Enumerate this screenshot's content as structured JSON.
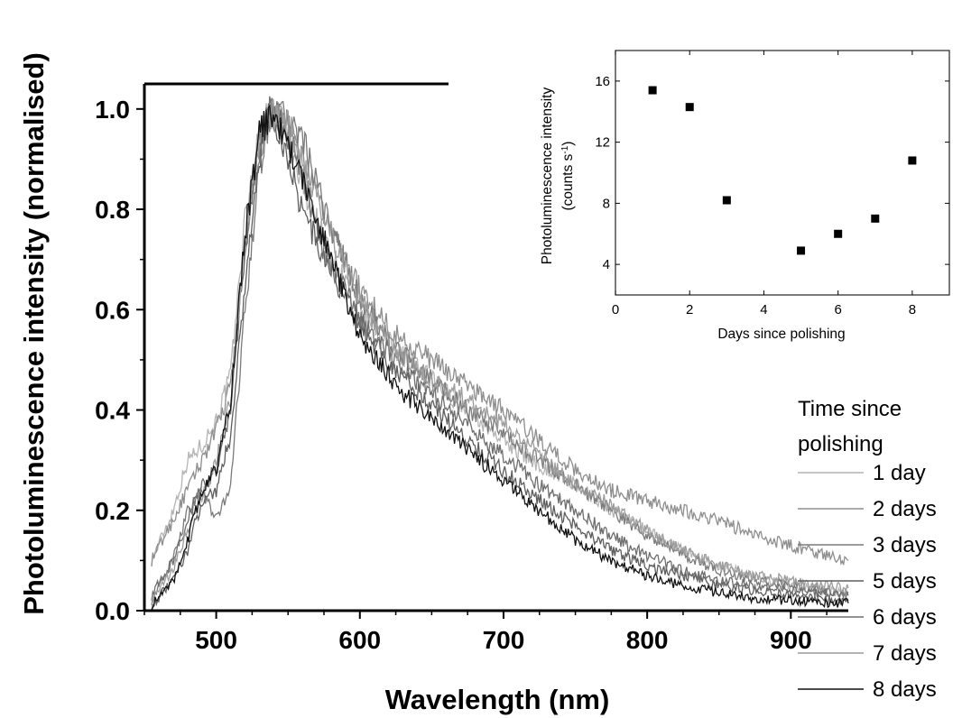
{
  "chart_data": [
    {
      "id": "main",
      "type": "line",
      "xlabel": "Wavelength (nm)",
      "ylabel": "Photoluminescence intensity (normalised)",
      "xlim": [
        450,
        940
      ],
      "ylim": [
        0,
        1.05
      ],
      "xticks": [
        500,
        600,
        700,
        800,
        900
      ],
      "yticks": [
        0.0,
        0.2,
        0.4,
        0.6,
        0.8,
        1.0
      ],
      "ytick_labels": [
        "0.0",
        "0.2",
        "0.4",
        "0.6",
        "0.8",
        "1.0"
      ],
      "legend_title": [
        "Time since",
        "polishing"
      ],
      "legend_position": "right",
      "grid": false,
      "series": [
        {
          "name": "1 day",
          "color": "#b4b4b4",
          "x": [
            455,
            470,
            480,
            490,
            500,
            510,
            520,
            530,
            538,
            550,
            560,
            575,
            600,
            625,
            650,
            675,
            700,
            725,
            750,
            775,
            800,
            825,
            850,
            875,
            900,
            925,
            940
          ],
          "y": [
            0.1,
            0.2,
            0.3,
            0.33,
            0.38,
            0.47,
            0.78,
            0.95,
            1.0,
            0.93,
            0.85,
            0.74,
            0.6,
            0.52,
            0.46,
            0.4,
            0.34,
            0.29,
            0.25,
            0.2,
            0.16,
            0.12,
            0.09,
            0.07,
            0.05,
            0.04,
            0.035
          ]
        },
        {
          "name": "2 days",
          "color": "#8e8e8e",
          "x": [
            455,
            470,
            480,
            490,
            500,
            505,
            510,
            520,
            530,
            538,
            550,
            560,
            575,
            600,
            625,
            650,
            675,
            700,
            725,
            750,
            775,
            800,
            825,
            850,
            875,
            900,
            925,
            940
          ],
          "y": [
            0.1,
            0.18,
            0.24,
            0.3,
            0.36,
            0.4,
            0.45,
            0.7,
            0.92,
            1.0,
            0.96,
            0.9,
            0.79,
            0.64,
            0.55,
            0.5,
            0.45,
            0.4,
            0.34,
            0.28,
            0.24,
            0.22,
            0.2,
            0.18,
            0.15,
            0.13,
            0.11,
            0.1
          ]
        },
        {
          "name": "3 days",
          "color": "#7a7a7a",
          "x": [
            455,
            470,
            480,
            490,
            500,
            510,
            520,
            530,
            538,
            550,
            560,
            575,
            600,
            625,
            650,
            675,
            700,
            725,
            750,
            775,
            800,
            825,
            850,
            875,
            900,
            925,
            940
          ],
          "y": [
            0.02,
            0.1,
            0.2,
            0.24,
            0.18,
            0.25,
            0.6,
            0.88,
            0.99,
            0.98,
            0.94,
            0.8,
            0.62,
            0.52,
            0.46,
            0.4,
            0.35,
            0.3,
            0.25,
            0.2,
            0.15,
            0.11,
            0.08,
            0.06,
            0.05,
            0.04,
            0.035
          ]
        },
        {
          "name": "5 days",
          "color": "#5e5e5e",
          "x": [
            455,
            470,
            480,
            490,
            500,
            510,
            520,
            530,
            538,
            550,
            560,
            575,
            600,
            625,
            650,
            675,
            700,
            725,
            750,
            775,
            800,
            825,
            850,
            875,
            900,
            925,
            940
          ],
          "y": [
            0.01,
            0.06,
            0.12,
            0.22,
            0.24,
            0.35,
            0.65,
            0.9,
            1.0,
            0.9,
            0.8,
            0.7,
            0.57,
            0.48,
            0.41,
            0.34,
            0.28,
            0.22,
            0.17,
            0.12,
            0.09,
            0.07,
            0.05,
            0.04,
            0.03,
            0.02,
            0.02
          ]
        },
        {
          "name": "6 days",
          "color": "#6e6e6e",
          "x": [
            455,
            470,
            480,
            490,
            500,
            510,
            520,
            530,
            538,
            550,
            560,
            575,
            600,
            625,
            650,
            675,
            700,
            725,
            750,
            775,
            800,
            825,
            850,
            875,
            900,
            925,
            940
          ],
          "y": [
            0.03,
            0.1,
            0.18,
            0.25,
            0.28,
            0.4,
            0.72,
            0.94,
            1.0,
            0.95,
            0.86,
            0.72,
            0.58,
            0.5,
            0.43,
            0.37,
            0.31,
            0.25,
            0.2,
            0.15,
            0.11,
            0.08,
            0.06,
            0.05,
            0.04,
            0.035,
            0.03
          ]
        },
        {
          "name": "7 days",
          "color": "#9c9c9c",
          "x": [
            455,
            470,
            480,
            490,
            500,
            510,
            520,
            530,
            538,
            550,
            560,
            575,
            600,
            625,
            650,
            675,
            700,
            725,
            750,
            775,
            800,
            825,
            850,
            875,
            900,
            925,
            940
          ],
          "y": [
            0.02,
            0.08,
            0.16,
            0.22,
            0.3,
            0.42,
            0.74,
            0.94,
            0.99,
            0.97,
            0.9,
            0.78,
            0.62,
            0.52,
            0.46,
            0.42,
            0.37,
            0.31,
            0.25,
            0.21,
            0.16,
            0.12,
            0.09,
            0.07,
            0.06,
            0.05,
            0.045
          ]
        },
        {
          "name": "8 days",
          "color": "#111111",
          "x": [
            455,
            470,
            480,
            490,
            500,
            510,
            520,
            530,
            538,
            550,
            560,
            575,
            600,
            625,
            650,
            675,
            700,
            725,
            750,
            775,
            800,
            825,
            850,
            875,
            900,
            925,
            940
          ],
          "y": [
            0.01,
            0.06,
            0.14,
            0.24,
            0.28,
            0.42,
            0.75,
            0.95,
            0.99,
            0.93,
            0.86,
            0.74,
            0.55,
            0.45,
            0.38,
            0.32,
            0.26,
            0.2,
            0.14,
            0.1,
            0.07,
            0.05,
            0.035,
            0.025,
            0.02,
            0.015,
            0.015
          ]
        }
      ]
    },
    {
      "id": "inset",
      "type": "scatter",
      "xlabel": "Days since polishing",
      "ylabel_lines": [
        "Photoluminescence intensity",
        "(counts s-1)"
      ],
      "xlim": [
        0,
        9
      ],
      "ylim": [
        2,
        18
      ],
      "xticks": [
        0,
        2,
        4,
        6,
        8
      ],
      "yticks": [
        4,
        8,
        12,
        16
      ],
      "grid": false,
      "marker": "square",
      "color": "#000000",
      "x": [
        1,
        2,
        3,
        5,
        6,
        7,
        8
      ],
      "y": [
        15.4,
        14.3,
        8.2,
        4.9,
        6.0,
        7.0,
        10.8
      ]
    }
  ]
}
